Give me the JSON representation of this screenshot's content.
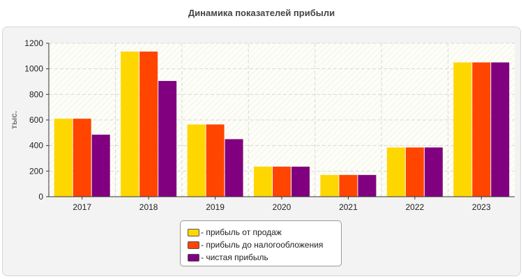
{
  "chart_data": {
    "type": "bar",
    "title": "Динамика показателей прибыли",
    "xlabel": "",
    "ylabel": "тыс.",
    "ylim": [
      0,
      1200
    ],
    "yticks": [
      0,
      200,
      400,
      600,
      800,
      1000,
      1200
    ],
    "grid": true,
    "legend_position": "bottom-center",
    "categories": [
      "2017",
      "2018",
      "2019",
      "2020",
      "2021",
      "2022",
      "2023"
    ],
    "series": [
      {
        "name": "- прибыль от продаж",
        "color": "#ffd700",
        "values": [
          610,
          1135,
          565,
          235,
          170,
          385,
          1050
        ]
      },
      {
        "name": "- прибыль до налогообложения",
        "color": "#ff4500",
        "values": [
          610,
          1135,
          565,
          235,
          170,
          385,
          1050
        ]
      },
      {
        "name": "- чистая прибыль",
        "color": "#800080",
        "values": [
          485,
          905,
          450,
          235,
          170,
          385,
          1050
        ]
      }
    ]
  }
}
